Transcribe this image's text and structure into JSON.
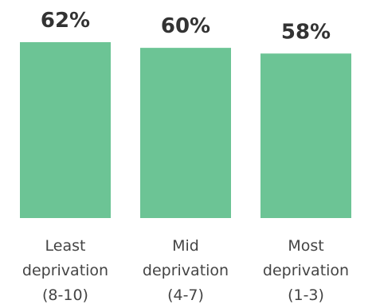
{
  "chart_data": {
    "type": "bar",
    "categories": [
      [
        "Least",
        "deprivation",
        "(8-10)"
      ],
      [
        "Mid",
        "deprivation",
        "(4-7)"
      ],
      [
        "Most",
        "deprivation",
        "(1-3)"
      ]
    ],
    "values": [
      62,
      60,
      58
    ],
    "value_labels": [
      "62%",
      "60%",
      "58%"
    ],
    "ylim": [
      0,
      62
    ],
    "bar_color": "#6cc495",
    "grid": false,
    "title": "",
    "xlabel": "",
    "ylabel": ""
  }
}
